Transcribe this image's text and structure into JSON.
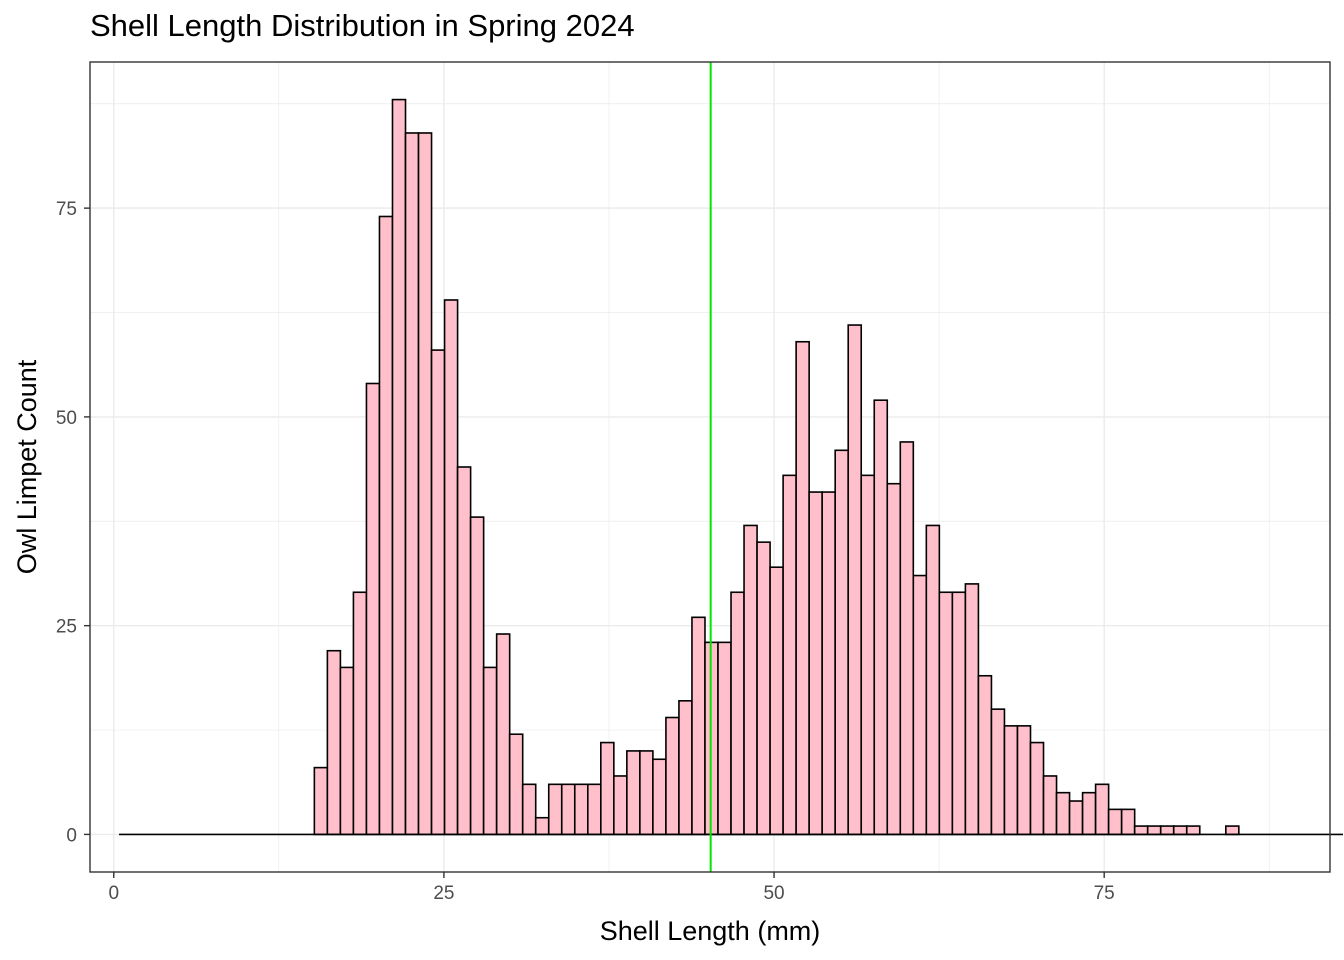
{
  "chart_data": {
    "type": "bar",
    "title": "Shell Length Distribution in Spring 2024",
    "xlabel": "Shell Length (mm)",
    "ylabel": "Owl Limpet Count",
    "xlim": [
      -1.8,
      92.1
    ],
    "ylim": [
      -4.5,
      92.5
    ],
    "x_ticks": [
      0,
      25,
      50,
      75
    ],
    "y_ticks": [
      0,
      25,
      50,
      75
    ],
    "grid": true,
    "bin_width": 0.986,
    "bin_start": 0.4,
    "counts": [
      0,
      0,
      0,
      0,
      0,
      0,
      0,
      0,
      0,
      0,
      0,
      0,
      0,
      0,
      0,
      8,
      22,
      20,
      29,
      54,
      74,
      88,
      84,
      84,
      58,
      64,
      44,
      38,
      20,
      24,
      12,
      6,
      2,
      6,
      6,
      6,
      6,
      11,
      7,
      10,
      10,
      9,
      14,
      16,
      26,
      23,
      23,
      29,
      37,
      35,
      32,
      43,
      59,
      41,
      41,
      46,
      61,
      43,
      52,
      42,
      47,
      31,
      37,
      29,
      29,
      30,
      19,
      15,
      13,
      13,
      11,
      7,
      5,
      4,
      5,
      6,
      3,
      3,
      1,
      1,
      1,
      1,
      1,
      0,
      0,
      1,
      0,
      0,
      0,
      0,
      0,
      0,
      0,
      0
    ],
    "fill_color": "#ffc0cb",
    "outline_color": "#000000",
    "reference_line": {
      "x": 45.2,
      "color": "#00e600"
    }
  }
}
